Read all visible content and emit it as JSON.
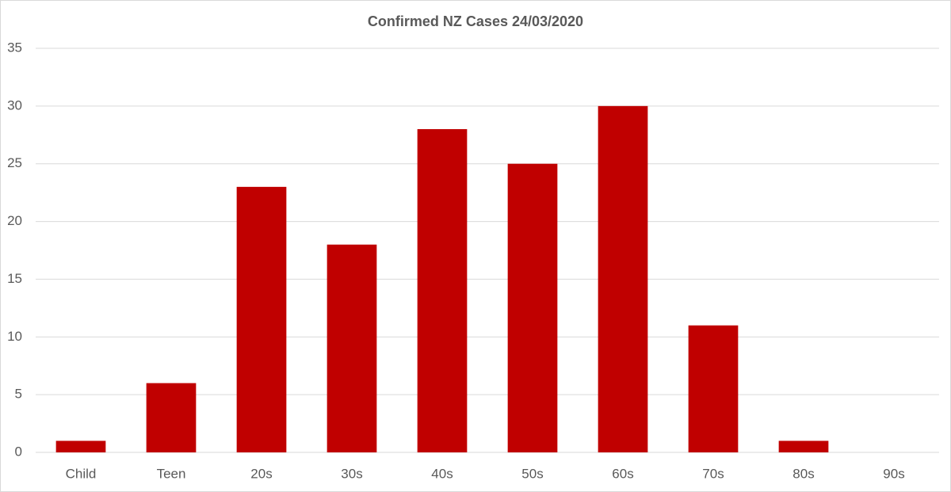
{
  "chart_data": {
    "type": "bar",
    "title": "Confirmed NZ Cases 24/03/2020",
    "categories": [
      "Child",
      "Teen",
      "20s",
      "30s",
      "40s",
      "50s",
      "60s",
      "70s",
      "80s",
      "90s"
    ],
    "values": [
      1,
      6,
      23,
      18,
      28,
      25,
      30,
      11,
      1,
      0
    ],
    "color": "#c00000",
    "ylim": [
      0,
      35
    ],
    "yticks": [
      0,
      5,
      10,
      15,
      20,
      25,
      30,
      35
    ],
    "grid": true
  }
}
